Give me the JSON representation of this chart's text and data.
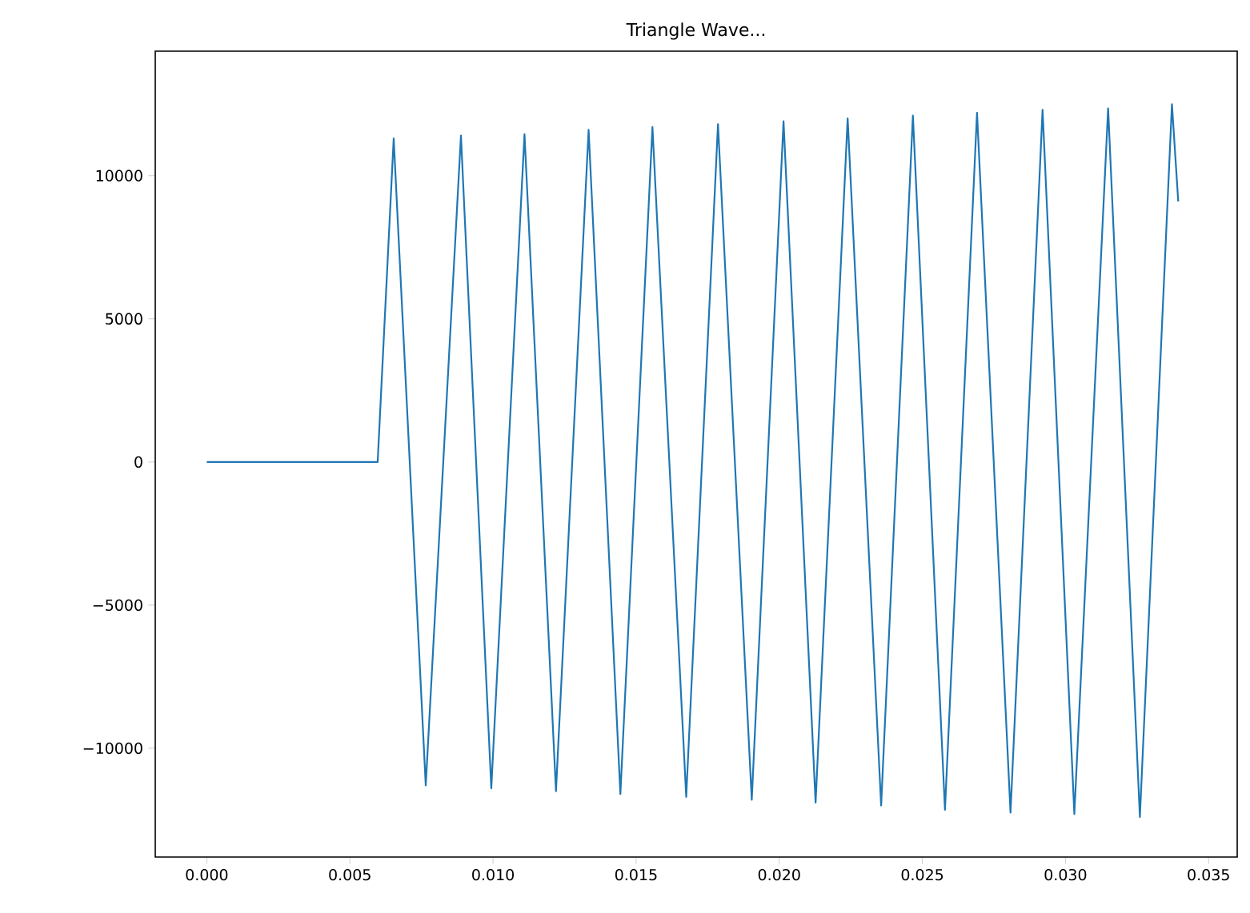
{
  "chart_data": {
    "type": "line",
    "title": "Triangle Wave...",
    "series": [
      {
        "color": "#1f77b4",
        "x": [
          0,
          0.00597,
          0.00653,
          0.00765,
          0.00888,
          0.00994,
          0.0111,
          0.0122,
          0.01334,
          0.01445,
          0.01557,
          0.01675,
          0.01786,
          0.01904,
          0.02015,
          0.02127,
          0.02239,
          0.02356,
          0.02467,
          0.02579,
          0.02691,
          0.02808,
          0.0292,
          0.03031,
          0.03149,
          0.0326,
          0.03372,
          0.03394
        ],
        "values": [
          0,
          0,
          11300,
          -11300,
          11400,
          -11400,
          11450,
          -11500,
          11600,
          -11600,
          11700,
          -11700,
          11800,
          -11800,
          11900,
          -11900,
          12000,
          -12000,
          12100,
          -12150,
          12200,
          -12250,
          12300,
          -12300,
          12350,
          -12400,
          12500,
          9100
        ]
      }
    ],
    "xlim": [
      -0.0018,
      0.036
    ],
    "ylim": [
      -13800,
      14350
    ],
    "xticks": [
      {
        "value": 0,
        "label": "0.000"
      },
      {
        "value": 0.005,
        "label": "0.005"
      },
      {
        "value": 0.01,
        "label": "0.010"
      },
      {
        "value": 0.015,
        "label": "0.015"
      },
      {
        "value": 0.02,
        "label": "0.020"
      },
      {
        "value": 0.025,
        "label": "0.025"
      },
      {
        "value": 0.03,
        "label": "0.030"
      },
      {
        "value": 0.035,
        "label": "0.035"
      }
    ],
    "yticks": [
      {
        "value": -10000,
        "label": "−10000"
      },
      {
        "value": -5000,
        "label": "−5000"
      },
      0,
      5000,
      10000
    ],
    "grid": false,
    "marker": "none",
    "line_style": "solid"
  }
}
